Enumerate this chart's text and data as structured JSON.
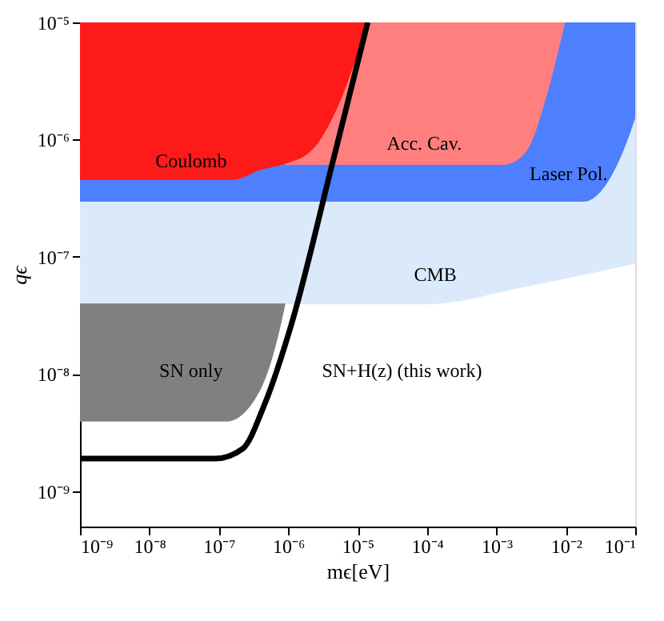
{
  "chart_data": {
    "type": "line",
    "xlabel": "mϵ[eV]",
    "ylabel": "qϵ",
    "log": "xy",
    "grid": false,
    "xlim": [
      1e-09,
      0.1
    ],
    "ylim": [
      5e-10,
      1e-05
    ],
    "xticks": [
      {
        "value": 1e-09,
        "label": "10⁻⁹"
      },
      {
        "value": 1e-08,
        "label": "10⁻⁸"
      },
      {
        "value": 1e-07,
        "label": "10⁻⁷"
      },
      {
        "value": 1e-06,
        "label": "10⁻⁶"
      },
      {
        "value": 1e-05,
        "label": "10⁻⁵"
      },
      {
        "value": 0.0001,
        "label": "10⁻⁴"
      },
      {
        "value": 0.001,
        "label": "10⁻³"
      },
      {
        "value": 0.01,
        "label": "10⁻²"
      },
      {
        "value": 0.1,
        "label": "10⁻¹"
      }
    ],
    "yticks": [
      {
        "value": 1e-09,
        "label": "10⁻⁹"
      },
      {
        "value": 1e-08,
        "label": "10⁻⁸"
      },
      {
        "value": 1e-07,
        "label": "10⁻⁷"
      },
      {
        "value": 1e-06,
        "label": "10⁻⁶"
      },
      {
        "value": 1e-05,
        "label": "10⁻⁵"
      }
    ],
    "series": [
      {
        "name": "CMB",
        "color": "#dbeafb",
        "x": [
          1e-09,
          0.0001,
          0.0025,
          0.1
        ],
        "values": [
          4e-08,
          4e-08,
          5.6e-08,
          8.9e-08
        ],
        "lower": [
          4e-08,
          4e-08,
          5.6e-08,
          8.9e-08
        ],
        "upper": [
          1e-05,
          1e-05,
          1e-05,
          1e-05
        ]
      },
      {
        "name": "Laser Pol.",
        "color": "#4d7fff",
        "x": [
          1e-09,
          0.018,
          0.045,
          0.076,
          0.1
        ],
        "values": [
          3e-07,
          3e-07,
          5e-07,
          1e-06,
          1.6e-06
        ],
        "lower": [
          3e-07,
          3e-07,
          5e-07,
          1e-06,
          1.6e-06
        ],
        "upper": [
          1e-05,
          1e-05,
          1e-05,
          1e-05,
          1e-05
        ]
      },
      {
        "name": "Acc. Cav.",
        "color": "#ff7f7f",
        "x": [
          8.9e-07,
          0.0013,
          0.0026,
          0.0054,
          0.0095
        ],
        "values": [
          6.2e-07,
          6.2e-07,
          7.9e-07,
          2.6e-06,
          1e-05
        ],
        "lower": [
          6.2e-07,
          6.2e-07,
          7.9e-07,
          2.6e-06,
          1e-05
        ],
        "upper": [
          1e-05,
          1e-05,
          1e-05,
          1e-05,
          1e-05
        ]
      },
      {
        "name": "Coulomb",
        "color": "#ff1a1a",
        "x": [
          1e-09,
          1.6e-07,
          4e-07,
          8.9e-07,
          2.2e-06,
          5.4e-06,
          1.07e-05,
          1.4e-05
        ],
        "values": [
          4.6e-07,
          4.6e-07,
          5.6e-07,
          6.3e-07,
          8.3e-07,
          2.1e-06,
          6.3e-06,
          1e-05
        ],
        "lower": [
          4.6e-07,
          4.6e-07,
          5.6e-07,
          6.3e-07,
          8.3e-07,
          2.1e-06,
          6.3e-06,
          1e-05
        ],
        "upper": [
          1e-05,
          1e-05,
          1e-05,
          1e-05,
          1e-05,
          1e-05,
          1e-05,
          1e-05
        ]
      },
      {
        "name": "SN only",
        "color": "#808080",
        "x": [
          1e-09,
          1.3e-07,
          3.8e-07,
          7.6e-07,
          8.9e-07
        ],
        "values": [
          4e-09,
          4e-09,
          7.2e-09,
          2.6e-08,
          4e-08
        ],
        "lower": [
          4e-09,
          4e-09,
          7.2e-09,
          2.6e-08,
          4e-08
        ],
        "upper": [
          4e-08,
          4e-08,
          4e-08,
          4e-08,
          4e-08
        ]
      },
      {
        "name": "SN+H(z) (this work)",
        "color": "#000000",
        "x": [
          1e-09,
          9e-08,
          2.2e-07,
          4.5e-07,
          1.1e-06,
          4.4e-06,
          1.4e-05
        ],
        "values": [
          1.9e-09,
          1.9e-09,
          2.3e-09,
          5.4e-09,
          2.6e-08,
          6.5e-07,
          1e-05
        ]
      }
    ]
  }
}
